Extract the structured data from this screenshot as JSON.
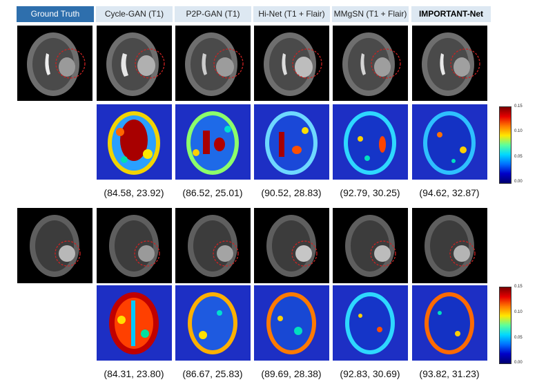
{
  "headers": {
    "ground_truth": "Ground Truth",
    "cycle_gan": "Cycle-GAN (T1)",
    "p2p_gan": "P2P-GAN (T1)",
    "hi_net": "Hi-Net (T1 + Flair)",
    "mmgsn": "MMgSN (T1 + Flair)",
    "important_net": "IMPORTANT-Net"
  },
  "metrics_row1": [
    "(84.58, 23.92)",
    "(86.52, 25.01)",
    "(90.52, 28.83)",
    "(92.79, 30.25)",
    "(94.62, 32.87)"
  ],
  "metrics_row2": [
    "(84.31, 23.80)",
    "(86.67, 25.83)",
    "(89.69, 28.38)",
    "(92.83, 30.69)",
    "(93.82, 31.23)"
  ],
  "colorbar": {
    "ticks": [
      "0.15",
      "0.10",
      "0.05",
      "0.00"
    ]
  },
  "colors": {
    "header_highlight": "#2e6fad",
    "header_bg": "#dde8f2",
    "error_bg": "#1d2fc4",
    "lesion_circle": "#cc2222"
  }
}
